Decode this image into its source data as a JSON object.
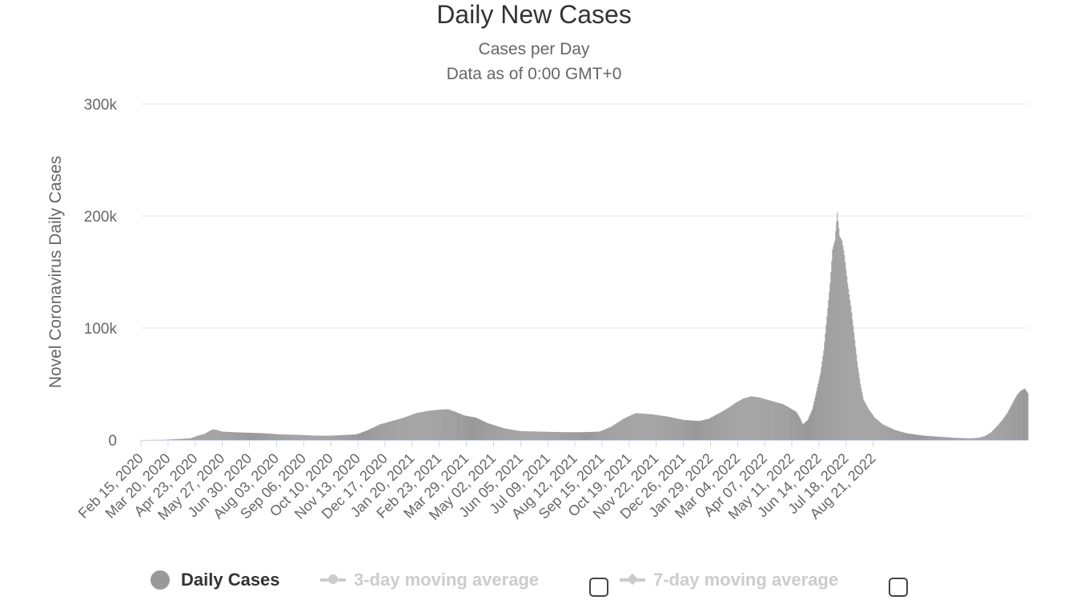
{
  "chart_data": {
    "type": "bar",
    "title": "Daily New Cases",
    "subtitle": [
      "Cases per Day",
      "Data as of 0:00 GMT+0"
    ],
    "ylabel": "Novel Coronavirus Daily Cases",
    "xlabel": "",
    "ylim": [
      0,
      300000
    ],
    "yticks": [
      0,
      100000,
      200000,
      300000
    ],
    "ytick_labels": [
      "0",
      "100k",
      "200k",
      "300k"
    ],
    "xtick_labels": [
      "Feb 15, 2020",
      "Mar 20, 2020",
      "Apr 23, 2020",
      "May 27, 2020",
      "Jun 30, 2020",
      "Aug 03, 2020",
      "Sep 06, 2020",
      "Oct 10, 2020",
      "Nov 13, 2020",
      "Dec 17, 2020",
      "Jan 20, 2021",
      "Feb 23, 2021",
      "Mar 29, 2021",
      "May 02, 2021",
      "Jun 05, 2021",
      "Jul 09, 2021",
      "Aug 12, 2021",
      "Sep 15, 2021",
      "Oct 19, 2021",
      "Nov 22, 2021",
      "Dec 26, 2021",
      "Jan 29, 2022",
      "Mar 04, 2022",
      "Apr 07, 2022",
      "May 11, 2022",
      "Jun 14, 2022",
      "Jul 18, 2022",
      "Aug 21, 2022"
    ],
    "x_start": "Feb 15, 2020",
    "x_end": "Sep 04, 2022",
    "grid": true,
    "color": "#999999",
    "series": [
      {
        "name": "Daily Cases",
        "values": [
          [
            0,
            0
          ],
          [
            30,
            200
          ],
          [
            62,
            1500
          ],
          [
            72,
            4000
          ],
          [
            80,
            5500
          ],
          [
            86,
            8000
          ],
          [
            90,
            9500
          ],
          [
            95,
            9000
          ],
          [
            102,
            7500
          ],
          [
            115,
            7000
          ],
          [
            135,
            6500
          ],
          [
            155,
            6000
          ],
          [
            175,
            5000
          ],
          [
            200,
            4500
          ],
          [
            215,
            4000
          ],
          [
            235,
            3800
          ],
          [
            255,
            4500
          ],
          [
            270,
            5000
          ],
          [
            285,
            9000
          ],
          [
            300,
            14000
          ],
          [
            315,
            17000
          ],
          [
            330,
            20000
          ],
          [
            345,
            24000
          ],
          [
            360,
            26000
          ],
          [
            372,
            27000
          ],
          [
            385,
            27500
          ],
          [
            395,
            25000
          ],
          [
            405,
            22000
          ],
          [
            420,
            20000
          ],
          [
            435,
            15000
          ],
          [
            455,
            10500
          ],
          [
            475,
            8000
          ],
          [
            500,
            7500
          ],
          [
            530,
            7000
          ],
          [
            555,
            7000
          ],
          [
            575,
            7500
          ],
          [
            590,
            12000
          ],
          [
            605,
            19000
          ],
          [
            620,
            24000
          ],
          [
            640,
            23000
          ],
          [
            660,
            21000
          ],
          [
            680,
            18000
          ],
          [
            700,
            17000
          ],
          [
            712,
            19000
          ],
          [
            725,
            24000
          ],
          [
            735,
            28000
          ],
          [
            745,
            33000
          ],
          [
            755,
            37000
          ],
          [
            765,
            39000
          ],
          [
            775,
            38000
          ],
          [
            790,
            35000
          ],
          [
            805,
            32000
          ],
          [
            815,
            28000
          ],
          [
            822,
            25000
          ],
          [
            826,
            20000
          ],
          [
            830,
            14000
          ],
          [
            836,
            18000
          ],
          [
            842,
            28000
          ],
          [
            848,
            47000
          ],
          [
            852,
            60000
          ],
          [
            856,
            80000
          ],
          [
            860,
            110000
          ],
          [
            864,
            140000
          ],
          [
            867,
            170000
          ],
          [
            870,
            178000
          ],
          [
            873,
            203000
          ],
          [
            876,
            182000
          ],
          [
            879,
            178000
          ],
          [
            882,
            165000
          ],
          [
            886,
            140000
          ],
          [
            890,
            120000
          ],
          [
            894,
            96000
          ],
          [
            898,
            70000
          ],
          [
            902,
            50000
          ],
          [
            906,
            36000
          ],
          [
            912,
            28000
          ],
          [
            920,
            20000
          ],
          [
            930,
            14000
          ],
          [
            945,
            9000
          ],
          [
            960,
            6000
          ],
          [
            980,
            4000
          ],
          [
            1000,
            3000
          ],
          [
            1020,
            2000
          ],
          [
            1040,
            1500
          ],
          [
            1050,
            2000
          ],
          [
            1058,
            3500
          ],
          [
            1066,
            7000
          ],
          [
            1074,
            13000
          ],
          [
            1080,
            18000
          ],
          [
            1086,
            24000
          ],
          [
            1092,
            32000
          ],
          [
            1098,
            40000
          ],
          [
            1103,
            44000
          ],
          [
            1108,
            46000
          ],
          [
            1112,
            42000
          ]
        ]
      }
    ]
  },
  "legend": {
    "items": [
      {
        "label": "Daily Cases",
        "color": "#999999",
        "active": true
      },
      {
        "label": "3-day moving average",
        "color": "#cccccc",
        "active": false
      },
      {
        "label": "7-day moving average",
        "color": "#cccccc",
        "active": false
      }
    ]
  }
}
